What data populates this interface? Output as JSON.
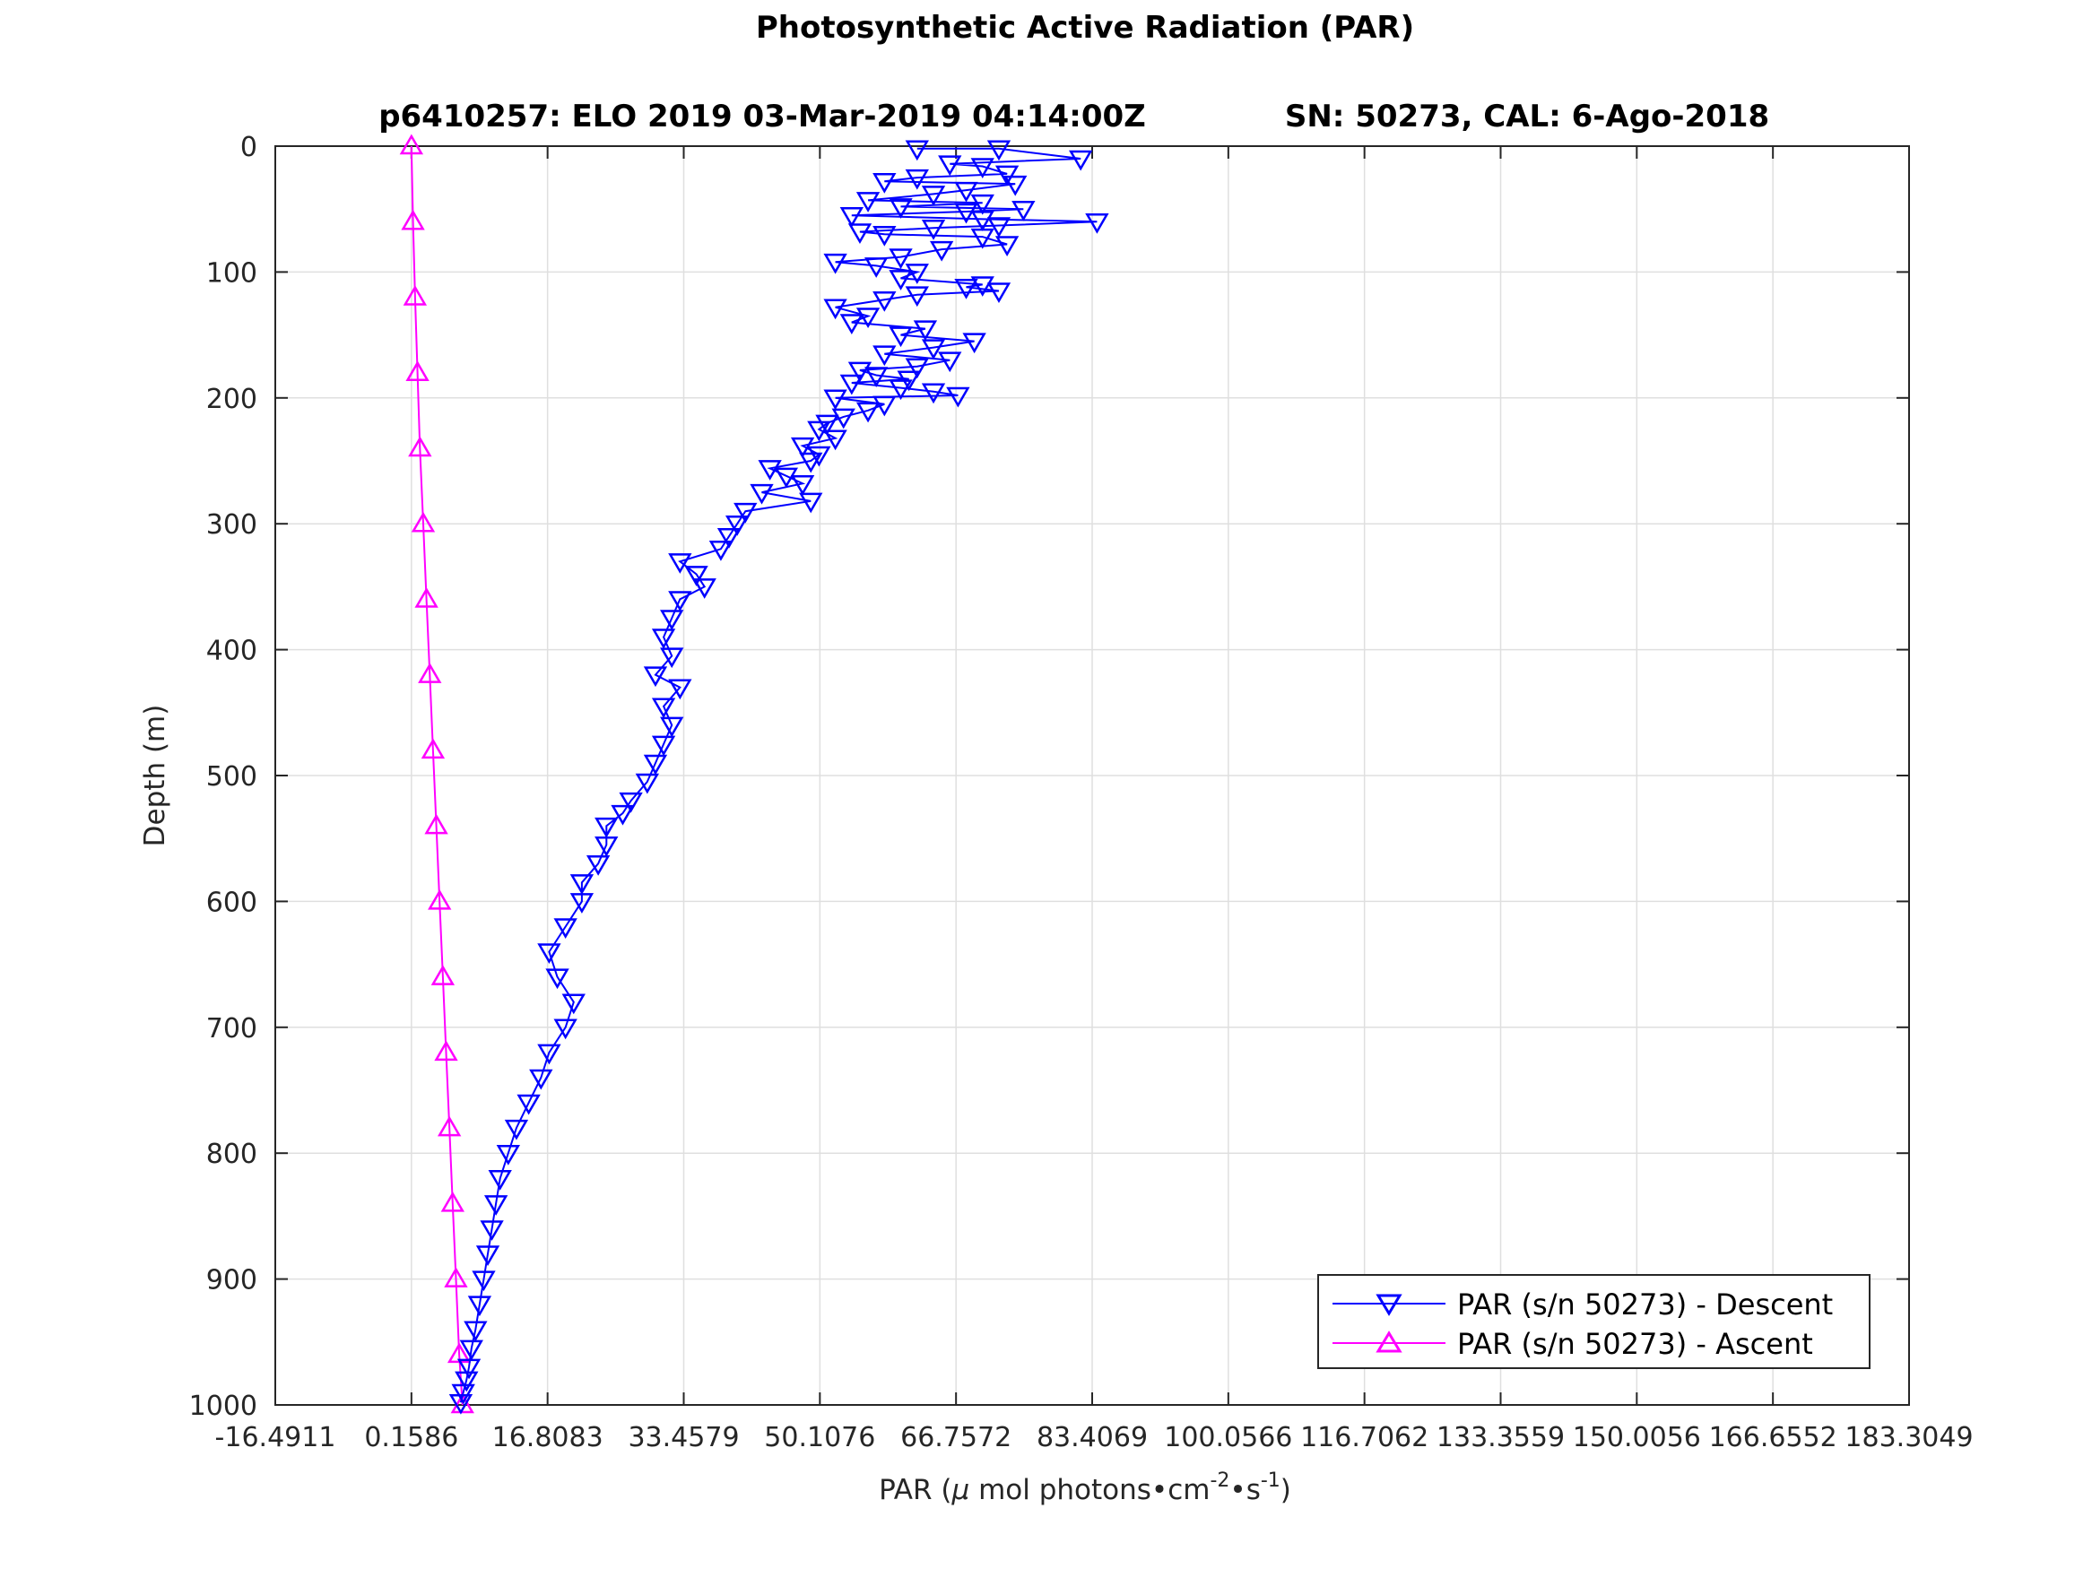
{
  "chart_data": {
    "type": "scatter",
    "title": "Photosynthetic Active Radiation (PAR)",
    "subtitle_left": "p6410257: ELO 2019 03-Mar-2019 04:14:00Z",
    "subtitle_right": "SN: 50273, CAL: 6-Ago-2018",
    "xlabel": {
      "prefix": "PAR (",
      "mu": "μ",
      "mid": " mol photons",
      "bullet1": "•",
      "cm": "cm",
      "exp1": "-2",
      "bullet2": "•",
      "s": "s",
      "exp2": "-1",
      "suffix": ")"
    },
    "ylabel": "Depth (m)",
    "xlim": [
      -16.4911,
      183.3049
    ],
    "ylim": [
      0,
      1000
    ],
    "y_reversed": true,
    "grid": true,
    "legend_placement": "bottom-right",
    "xticks": [
      "-16.4911",
      "0.1586",
      "16.8083",
      "33.4579",
      "50.1076",
      "66.7572",
      "83.4069",
      "100.0566",
      "116.7062",
      "133.3559",
      "150.0056",
      "166.6552",
      "183.3049"
    ],
    "yticks": [
      "0",
      "100",
      "200",
      "300",
      "400",
      "500",
      "600",
      "700",
      "800",
      "900",
      "1000"
    ],
    "colors": {
      "descent": "#0000ff",
      "ascent": "#ff00ff"
    },
    "series": [
      {
        "name": "PAR (s/n 50273) - Descent",
        "marker": "triangle-down",
        "color": "#0000ff",
        "x": [
          62,
          72,
          82,
          66,
          70,
          73,
          62,
          58,
          74,
          68,
          64,
          56,
          70,
          60,
          75,
          68,
          54,
          70,
          84,
          72,
          64,
          55,
          58,
          70,
          73,
          65,
          60,
          52,
          57,
          62,
          60,
          70,
          68,
          72,
          62,
          58,
          52,
          56,
          54,
          63,
          60,
          69,
          64,
          58,
          66,
          62,
          55,
          57,
          61,
          54,
          60,
          64,
          67,
          52,
          58,
          56,
          53,
          51,
          50,
          52,
          48,
          50,
          49,
          44,
          46,
          48,
          43,
          49,
          41,
          40,
          39,
          38,
          33,
          35,
          36,
          33,
          32,
          31,
          32,
          30,
          33,
          31,
          32,
          31,
          30,
          29,
          27,
          26,
          24,
          24,
          23,
          21,
          21,
          19,
          17,
          18,
          20,
          19,
          17,
          16,
          14.5,
          13,
          12,
          11,
          10.5,
          10,
          9.5,
          9,
          8.5,
          8,
          7.5,
          7.2,
          6.9,
          6.5,
          6.2
        ],
        "y": [
          2,
          2,
          10,
          14,
          16,
          22,
          25,
          28,
          30,
          35,
          38,
          43,
          45,
          48,
          50,
          52,
          55,
          58,
          60,
          63,
          65,
          68,
          70,
          72,
          78,
          82,
          88,
          92,
          95,
          100,
          105,
          110,
          112,
          115,
          118,
          122,
          128,
          135,
          140,
          145,
          150,
          155,
          160,
          165,
          170,
          175,
          178,
          182,
          185,
          188,
          192,
          195,
          198,
          200,
          205,
          210,
          215,
          220,
          225,
          232,
          238,
          245,
          250,
          256,
          262,
          268,
          275,
          282,
          290,
          300,
          310,
          320,
          330,
          340,
          350,
          360,
          375,
          390,
          405,
          420,
          430,
          445,
          460,
          475,
          490,
          505,
          520,
          530,
          540,
          555,
          570,
          585,
          600,
          620,
          640,
          660,
          680,
          700,
          720,
          740,
          760,
          780,
          800,
          820,
          840,
          860,
          880,
          900,
          920,
          940,
          955,
          970,
          980,
          990,
          998
        ]
      },
      {
        "name": "PAR (s/n 50273) - Ascent",
        "marker": "triangle-up",
        "color": "#ff00ff",
        "x": [
          0.16,
          0.35,
          0.6,
          0.9,
          1.2,
          1.6,
          2.0,
          2.4,
          2.8,
          3.2,
          3.6,
          4.0,
          4.4,
          4.8,
          5.2,
          5.6,
          6.0,
          6.4
        ],
        "y": [
          0,
          60,
          120,
          180,
          240,
          300,
          360,
          420,
          480,
          540,
          600,
          660,
          720,
          780,
          840,
          900,
          960,
          1000
        ]
      }
    ]
  }
}
